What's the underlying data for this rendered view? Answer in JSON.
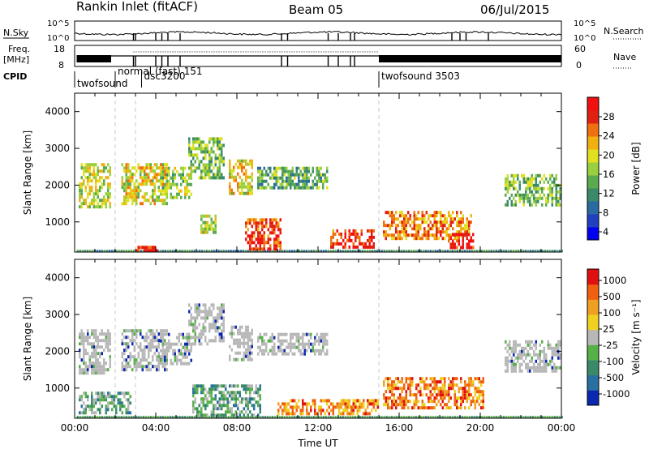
{
  "header": {
    "title": "Rankin Inlet (fitACF)",
    "beam": "Beam 05",
    "date": "06/Jul/2015"
  },
  "status_panels": {
    "nsky_label": "N.Sky",
    "nsearch_label": "N.Search",
    "nsky_ticks": [
      "10^5",
      "10^0"
    ],
    "freq_label": "Freq.",
    "freq_unit": "[MHz]",
    "freq_ticks": [
      "18",
      "8"
    ],
    "nave_label": "Nave",
    "nave_ticks": [
      "60",
      "0"
    ],
    "cpid_label": "CPID",
    "cpid_entries": [
      {
        "label": "twofsound",
        "start_hour": 0.0
      },
      {
        "label": "normal (fast) 151",
        "start_hour": 2.0
      },
      {
        "label": "dsc3200",
        "start_hour": 3.3
      },
      {
        "label": "twofsound 3503",
        "start_hour": 15.0
      }
    ]
  },
  "chart_data": [
    {
      "type": "heatmap",
      "title": "Power",
      "ylabel": "Slant Range [km]",
      "xlabel": "",
      "xlim": [
        0,
        24
      ],
      "ylim": [
        180,
        4500
      ],
      "yticks": [
        "4000",
        "3000",
        "2000",
        "1000"
      ],
      "colorbar_label": "Power [dB]",
      "colorbar_ticks": [
        "28",
        "24",
        "20",
        "16",
        "12",
        "8",
        "4"
      ],
      "colorbar_colors": [
        "#0000f0",
        "#2040c0",
        "#2a6aa0",
        "#3a8a6a",
        "#5aaa50",
        "#9ad040",
        "#e0e020",
        "#f0b010",
        "#f07010",
        "#e02010",
        "#f01010"
      ],
      "regions": [
        {
          "x": [
            0.2,
            1.8
          ],
          "y": [
            1400,
            2600
          ],
          "level": 0.55
        },
        {
          "x": [
            2.3,
            4.6
          ],
          "y": [
            1500,
            2600
          ],
          "level": 0.6
        },
        {
          "x": [
            3.0,
            4.2
          ],
          "y": [
            200,
            350
          ],
          "level": 0.95
        },
        {
          "x": [
            4.2,
            5.8
          ],
          "y": [
            1700,
            2500
          ],
          "level": 0.5
        },
        {
          "x": [
            5.6,
            7.4
          ],
          "y": [
            2200,
            3300
          ],
          "level": 0.45
        },
        {
          "x": [
            6.2,
            7.0
          ],
          "y": [
            700,
            1200
          ],
          "level": 0.55
        },
        {
          "x": [
            7.6,
            8.8
          ],
          "y": [
            1800,
            2700
          ],
          "level": 0.6
        },
        {
          "x": [
            8.4,
            10.2
          ],
          "y": [
            250,
            1100
          ],
          "level": 0.85
        },
        {
          "x": [
            9.0,
            12.4
          ],
          "y": [
            1900,
            2500
          ],
          "level": 0.4
        },
        {
          "x": [
            12.6,
            14.8
          ],
          "y": [
            350,
            800
          ],
          "level": 0.9
        },
        {
          "x": [
            15.2,
            19.6
          ],
          "y": [
            550,
            1300
          ],
          "level": 0.75
        },
        {
          "x": [
            18.4,
            19.7
          ],
          "y": [
            300,
            700
          ],
          "level": 0.95
        },
        {
          "x": [
            21.2,
            24.0
          ],
          "y": [
            1500,
            2300
          ],
          "level": 0.45
        }
      ]
    },
    {
      "type": "heatmap",
      "title": "Velocity",
      "ylabel": "Slant Range [km]",
      "xlabel": "Time UT",
      "xlim": [
        0,
        24
      ],
      "ylim": [
        180,
        4500
      ],
      "xticks": [
        "00:00",
        "04:00",
        "08:00",
        "12:00",
        "16:00",
        "20:00",
        "00:00"
      ],
      "yticks": [
        "4000",
        "3000",
        "2000",
        "1000"
      ],
      "colorbar_label": "Velocity [m s⁻¹]",
      "colorbar_ticks": [
        "1000",
        "500",
        "100",
        "25",
        "-25",
        "-100",
        "-500",
        "-1000"
      ],
      "colorbar_colors": [
        "#0a28b0",
        "#2870a0",
        "#3a8a6a",
        "#58b048",
        "#b8b8b8",
        "#f0d020",
        "#f0a020",
        "#f06010",
        "#e01010"
      ],
      "regions": [
        {
          "x": [
            0.2,
            1.8
          ],
          "y": [
            1400,
            2600
          ],
          "level": 0.5
        },
        {
          "x": [
            2.3,
            4.6
          ],
          "y": [
            1500,
            2600
          ],
          "level": 0.5
        },
        {
          "x": [
            4.2,
            5.8
          ],
          "y": [
            1700,
            2500
          ],
          "level": 0.5
        },
        {
          "x": [
            5.6,
            7.4
          ],
          "y": [
            2200,
            3300
          ],
          "level": 0.5
        },
        {
          "x": [
            7.6,
            8.8
          ],
          "y": [
            1800,
            2700
          ],
          "level": 0.5
        },
        {
          "x": [
            9.0,
            12.4
          ],
          "y": [
            1900,
            2500
          ],
          "level": 0.5
        },
        {
          "x": [
            0.2,
            2.8
          ],
          "y": [
            300,
            900
          ],
          "level": 0.35
        },
        {
          "x": [
            5.8,
            9.2
          ],
          "y": [
            300,
            1100
          ],
          "level": 0.35
        },
        {
          "x": [
            10.0,
            15.0
          ],
          "y": [
            300,
            700
          ],
          "level": 0.75
        },
        {
          "x": [
            15.2,
            20.2
          ],
          "y": [
            500,
            1300
          ],
          "level": 0.78
        },
        {
          "x": [
            21.2,
            24.0
          ],
          "y": [
            1500,
            2300
          ],
          "level": 0.5
        }
      ]
    }
  ]
}
